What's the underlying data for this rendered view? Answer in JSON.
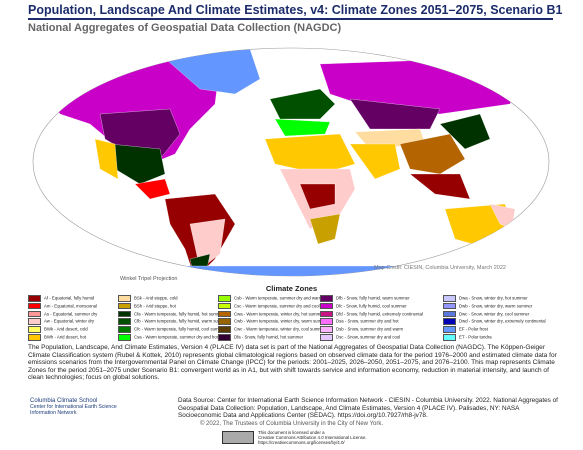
{
  "header": {
    "title": "Population, Landscape And Climate Estimates, v4: Climate Zones 2051–2075, Scenario B1",
    "subtitle": "National Aggregates of Geospatial Data Collection (NAGDC)"
  },
  "map": {
    "projection": "Winkel Tripel Projection",
    "credit": "Map Credit: CIESIN, Columbia University, March 2022"
  },
  "legend": {
    "title": "Climate Zones",
    "items": [
      {
        "label": "Af - Equatorial, fully humid",
        "color": "#960000"
      },
      {
        "label": "Am - Equatorial, monsoonal",
        "color": "#ff0000"
      },
      {
        "label": "As - Equatorial, summer dry",
        "color": "#ff9999"
      },
      {
        "label": "Aw - Equatorial, winter dry",
        "color": "#ffcccc"
      },
      {
        "label": "BWk - Arid desert, cold",
        "color": "#ffff64"
      },
      {
        "label": "BWh - Arid desert, hot",
        "color": "#ffc800"
      },
      {
        "label": "BSk - Arid steppe, cold",
        "color": "#ffdc9f"
      },
      {
        "label": "BSh - Arid steppe, hot",
        "color": "#c8a000"
      },
      {
        "label": "Cfa - Warm temperate, fully humid, hot summer",
        "color": "#003200"
      },
      {
        "label": "Cfb - Warm temperate, fully humid, warm summer",
        "color": "#005000"
      },
      {
        "label": "Cfc - Warm temperate, fully humid, cool summer",
        "color": "#007800"
      },
      {
        "label": "Csa - Warm temperate, summer dry and hot",
        "color": "#00ff00"
      },
      {
        "label": "Csb - Warm temperate, summer dry and warm",
        "color": "#96ff00"
      },
      {
        "label": "Csc - Warm temperate, summer dry and cool",
        "color": "#c8ff00"
      },
      {
        "label": "Cwa - Warm temperate, winter dry, hot summer",
        "color": "#b46400"
      },
      {
        "label": "Cwb - Warm temperate, winter dry, warm summer",
        "color": "#966400"
      },
      {
        "label": "Cwc - Warm temperate, winter dry, cool summer",
        "color": "#5a3c00"
      },
      {
        "label": "Dfa - Snow, fully humid, hot summer",
        "color": "#320032"
      },
      {
        "label": "Dfb - Snow, fully humid, warm summer",
        "color": "#640064"
      },
      {
        "label": "Dfc - Snow, fully humid, cool summer",
        "color": "#c800c8"
      },
      {
        "label": "Dfd - Snow, fully humid, extremely continental",
        "color": "#c71585"
      },
      {
        "label": "Dsa - Snow, summer dry and hot",
        "color": "#ff6dff"
      },
      {
        "label": "Dsb - Snow, summer dry and warm",
        "color": "#ffb4ff"
      },
      {
        "label": "Dsc - Snow, summer dry and cool",
        "color": "#e6c8ff"
      },
      {
        "label": "Dwa - Snow, winter dry, hot summer",
        "color": "#c8c8ff"
      },
      {
        "label": "Dwb - Snow, winter dry, warm summer",
        "color": "#9696ff"
      },
      {
        "label": "Dwc - Snow, winter dry, cool summer",
        "color": "#5a78dc"
      },
      {
        "label": "Dwd - Snow, winter dry, extremely continental",
        "color": "#0000b4"
      },
      {
        "label": "EF - Polar frost",
        "color": "#6496ff"
      },
      {
        "label": "ET - Polar tundra",
        "color": "#64ffff"
      }
    ]
  },
  "description": "The Population, Landscape, And Climate Estimates, Version 4 (PLACE IV) data set is part of the National Aggregates of Geospatial Data Collection (NAGDC). The Köppen-Geiger Climate Classification system (Rubel & Kottek, 2010) represents global climatological regions based on observed climate data for the period 1976–2000 and estimated climate data for emissions scenarios from the Intergovernmental Panel on Climate Change (IPCC) for the periods: 2001–2025, 2026–2050, 2051–2075, and 2076–2100. This map represents Climate Zones for the period 2051–2075 under Scenario B1: convergent world as in A1, but with shift towards service and information economy, reduction in material intensity, and launch of clean technologies; focus on global solutions.",
  "footer": {
    "logo": [
      "Columbia Climate School",
      "Center for International Earth Science",
      "Information Network"
    ],
    "source": "Data Source: Center for International Earth Science Information Network - CIESIN - Columbia University. 2022. National Aggregates of Geospatial Data Collection: Population, Landscape, And Climate Estimates, Version 4 (PLACE IV). Palisades, NY: NASA Socioeconomic Data and Applications Center (SEDAC). https://doi.org/10.7927/rh8-jv78.",
    "copyright": "© 2022, The Trustees of Columbia University in the City of New York.",
    "license": [
      "This document is licensed under a",
      "Creative Commons Attribution 4.0 International License.",
      "https://creativecommons.org/licenses/by/4.0/"
    ]
  }
}
